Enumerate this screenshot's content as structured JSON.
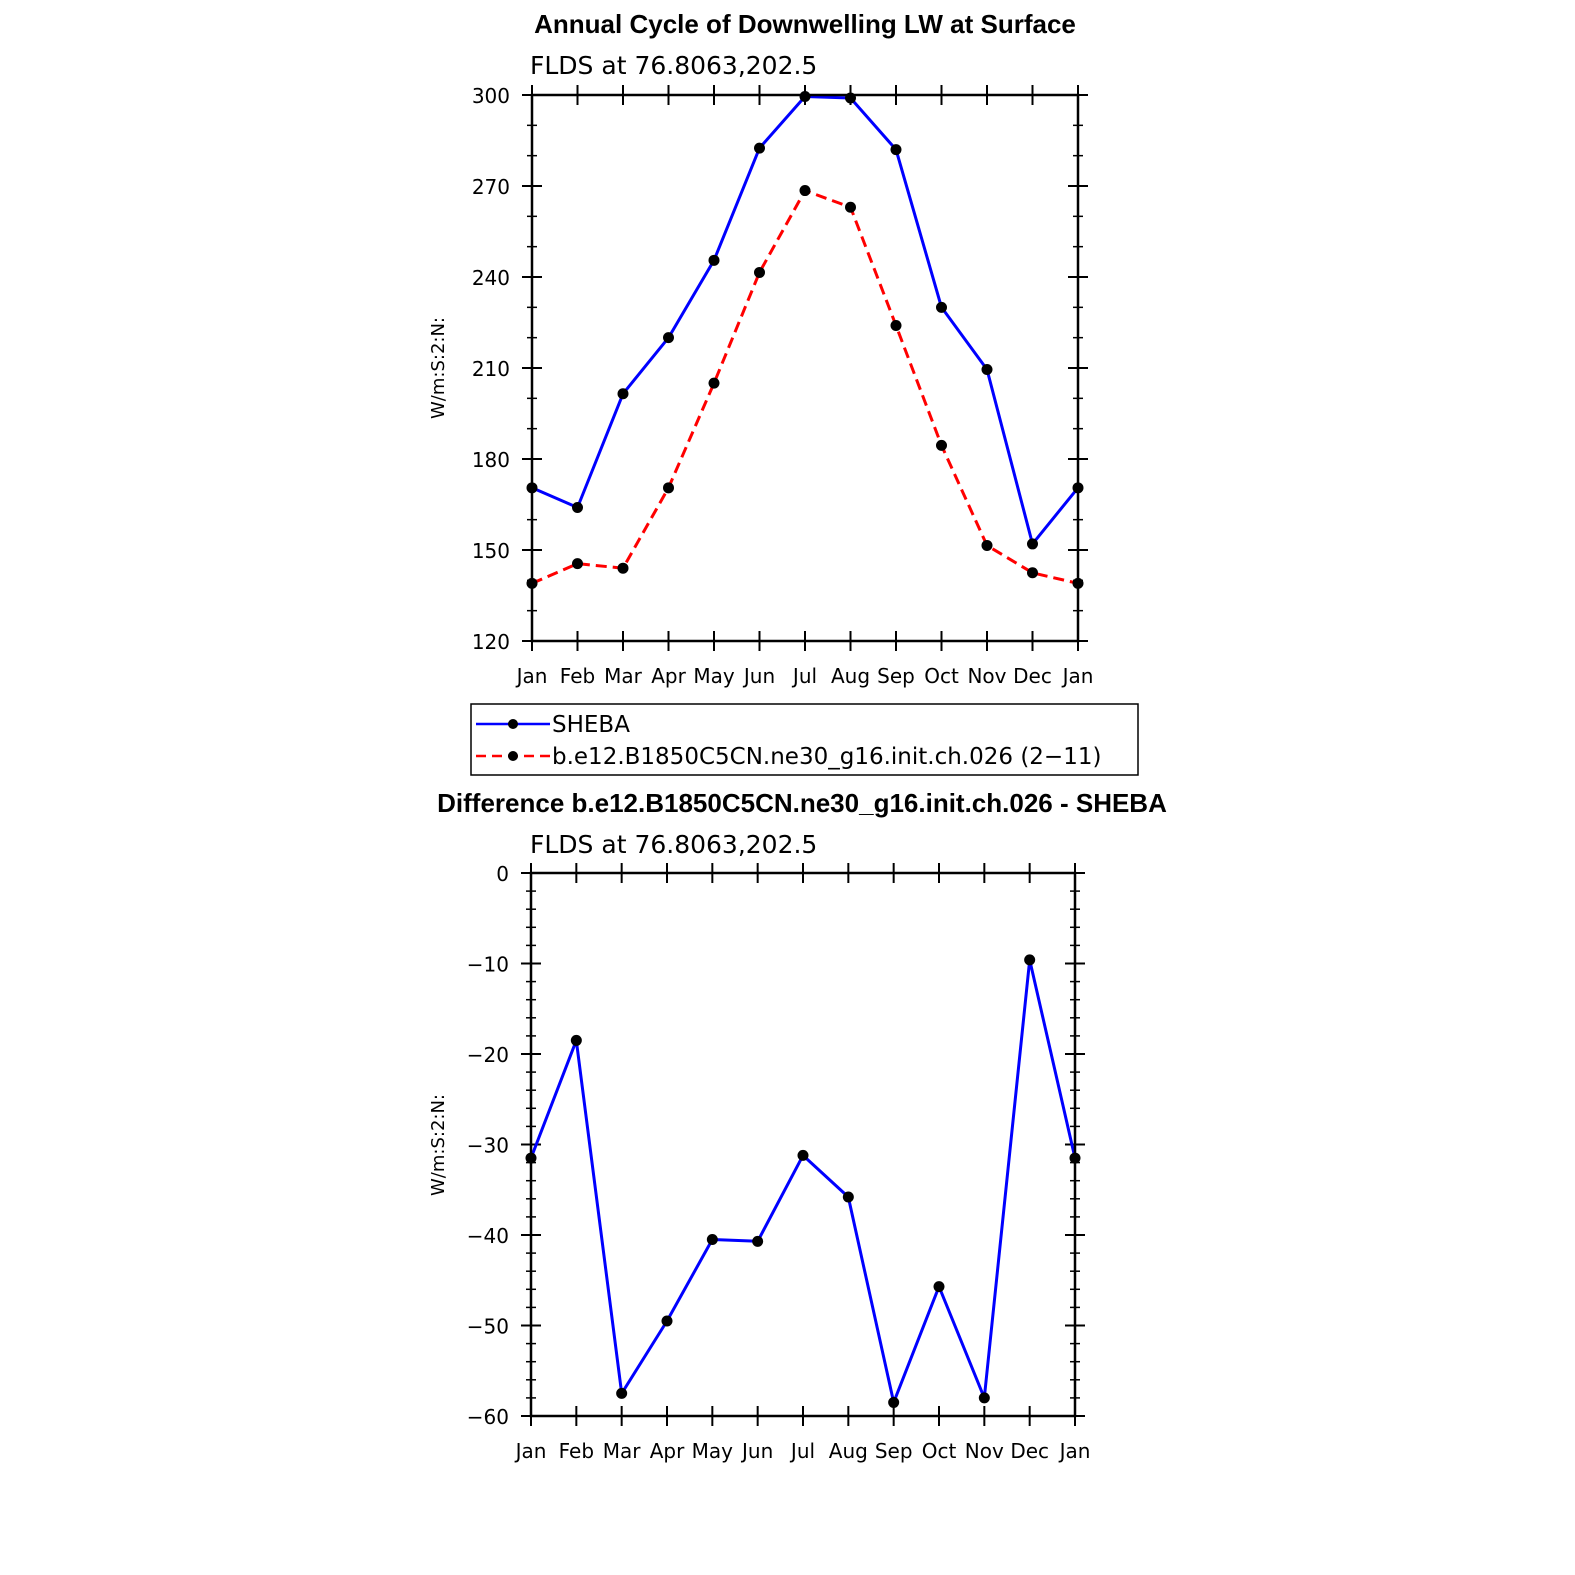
{
  "chart_data": [
    {
      "type": "line",
      "title": "Annual Cycle of Downwelling LW at Surface",
      "subtitle": "FLDS at 76.8063,202.5",
      "ylabel": "W/m:S:2:N:",
      "ylim": [
        120,
        300
      ],
      "yticks": [
        120,
        150,
        180,
        210,
        240,
        270,
        300
      ],
      "categories": [
        "Jan",
        "Feb",
        "Mar",
        "Apr",
        "May",
        "Jun",
        "Jul",
        "Aug",
        "Sep",
        "Oct",
        "Nov",
        "Dec",
        "Jan"
      ],
      "series": [
        {
          "name": "SHEBA",
          "color": "#0000ff",
          "dash": "solid",
          "values": [
            170.5,
            164,
            201.5,
            220,
            245.5,
            282.5,
            299.5,
            299,
            282,
            230,
            209.5,
            152,
            170.5
          ]
        },
        {
          "name": "b.e12.B1850C5CN.ne30_g16.init.ch.026 (2−11)",
          "color": "#ff0000",
          "dash": "dashed",
          "values": [
            139,
            145.5,
            144,
            170.5,
            205,
            241.5,
            268.5,
            263,
            224,
            184.5,
            151.5,
            142.5,
            139
          ]
        }
      ],
      "legend": "below"
    },
    {
      "type": "line",
      "title": "Difference b.e12.B1850C5CN.ne30_g16.init.ch.026 - SHEBA",
      "subtitle": "FLDS at 76.8063,202.5",
      "ylabel": "W/m:S:2:N:",
      "ylim": [
        -60,
        0
      ],
      "yticks": [
        -60,
        -50,
        -40,
        -30,
        -20,
        -10,
        0
      ],
      "categories": [
        "Jan",
        "Feb",
        "Mar",
        "Apr",
        "May",
        "Jun",
        "Jul",
        "Aug",
        "Sep",
        "Oct",
        "Nov",
        "Dec",
        "Jan"
      ],
      "series": [
        {
          "color": "#0000ff",
          "dash": "solid",
          "values": [
            -31.5,
            -18.5,
            -57.5,
            -49.5,
            -40.5,
            -40.7,
            -31.2,
            -35.8,
            -58.5,
            -45.7,
            -58,
            -9.6,
            -31.5
          ]
        }
      ]
    }
  ]
}
